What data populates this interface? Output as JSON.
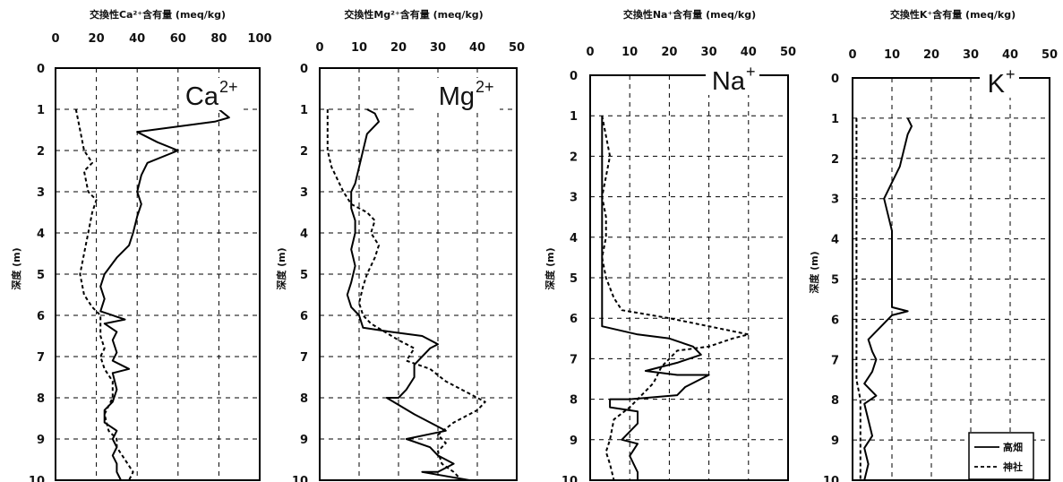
{
  "legend": {
    "entries": [
      {
        "name": "高畑",
        "style": "solid"
      },
      {
        "name": "神社",
        "style": "dashed"
      }
    ],
    "placement": "bottom-right of last panel"
  },
  "chart_data": [
    {
      "type": "line",
      "title": "交換性Ca²⁺含有量 (meq/kg)",
      "ion_label": "Ca",
      "ion_charge": "2+",
      "ylabel": "深度 (m)",
      "xlim": [
        0,
        100
      ],
      "xticks": [
        0,
        20,
        40,
        60,
        80,
        100
      ],
      "ylim": [
        0,
        10
      ],
      "yticks": [
        0,
        1,
        2,
        3,
        4,
        5,
        6,
        7,
        8,
        9,
        10
      ],
      "grid": true,
      "series": [
        {
          "name": "高畑",
          "points": [
            [
              80,
              1.0
            ],
            [
              85,
              1.2
            ],
            [
              78,
              1.3
            ],
            [
              40,
              1.55
            ],
            [
              50,
              1.8
            ],
            [
              60,
              2.0
            ],
            [
              45,
              2.3
            ],
            [
              42,
              2.6
            ],
            [
              40,
              3.0
            ],
            [
              42,
              3.3
            ],
            [
              40,
              3.6
            ],
            [
              38,
              4.0
            ],
            [
              36,
              4.3
            ],
            [
              30,
              4.6
            ],
            [
              24,
              5.0
            ],
            [
              22,
              5.3
            ],
            [
              24,
              5.6
            ],
            [
              22,
              5.9
            ],
            [
              34,
              6.1
            ],
            [
              24,
              6.2
            ],
            [
              30,
              6.4
            ],
            [
              28,
              6.6
            ],
            [
              30,
              6.9
            ],
            [
              28,
              7.1
            ],
            [
              36,
              7.3
            ],
            [
              28,
              7.4
            ],
            [
              30,
              7.8
            ],
            [
              28,
              8.1
            ],
            [
              24,
              8.3
            ],
            [
              24,
              8.6
            ],
            [
              30,
              8.8
            ],
            [
              28,
              9.0
            ],
            [
              30,
              9.2
            ],
            [
              28,
              9.4
            ],
            [
              30,
              9.6
            ],
            [
              30,
              9.8
            ],
            [
              32,
              10.0
            ]
          ]
        },
        {
          "name": "神社",
          "points": [
            [
              10,
              1.0
            ],
            [
              12,
              1.5
            ],
            [
              14,
              2.0
            ],
            [
              18,
              2.3
            ],
            [
              14,
              2.5
            ],
            [
              16,
              3.0
            ],
            [
              20,
              3.2
            ],
            [
              18,
              3.5
            ],
            [
              16,
              4.0
            ],
            [
              14,
              4.5
            ],
            [
              12,
              5.0
            ],
            [
              14,
              5.5
            ],
            [
              18,
              5.8
            ],
            [
              22,
              6.0
            ],
            [
              22,
              6.5
            ],
            [
              24,
              6.8
            ],
            [
              22,
              7.0
            ],
            [
              24,
              7.3
            ],
            [
              28,
              7.6
            ],
            [
              28,
              8.0
            ],
            [
              24,
              8.4
            ],
            [
              26,
              8.8
            ],
            [
              30,
              9.0
            ],
            [
              30,
              9.2
            ],
            [
              34,
              9.5
            ],
            [
              38,
              9.8
            ],
            [
              36,
              10.0
            ]
          ]
        }
      ]
    },
    {
      "type": "line",
      "title": "交換性Mg²⁺含有量 (meq/kg)",
      "ion_label": "Mg",
      "ion_charge": "2+",
      "ylabel": "深度 (m)",
      "xlim": [
        0,
        50
      ],
      "xticks": [
        0,
        10,
        20,
        30,
        40,
        50
      ],
      "ylim": [
        0,
        10
      ],
      "yticks": [
        0,
        1,
        2,
        3,
        4,
        5,
        6,
        7,
        8,
        9,
        10
      ],
      "grid": true,
      "series": [
        {
          "name": "高畑",
          "points": [
            [
              12,
              1.0
            ],
            [
              14,
              1.1
            ],
            [
              15,
              1.3
            ],
            [
              12,
              1.6
            ],
            [
              11,
              2.0
            ],
            [
              10,
              2.4
            ],
            [
              9,
              2.8
            ],
            [
              8,
              3.0
            ],
            [
              8,
              3.4
            ],
            [
              9,
              3.7
            ],
            [
              9,
              4.0
            ],
            [
              8,
              4.4
            ],
            [
              9,
              4.8
            ],
            [
              8,
              5.2
            ],
            [
              7,
              5.5
            ],
            [
              8,
              5.8
            ],
            [
              10,
              6.0
            ],
            [
              11,
              6.3
            ],
            [
              18,
              6.4
            ],
            [
              26,
              6.5
            ],
            [
              30,
              6.7
            ],
            [
              28,
              6.8
            ],
            [
              26,
              7.0
            ],
            [
              24,
              7.2
            ],
            [
              24,
              7.5
            ],
            [
              22,
              7.8
            ],
            [
              20,
              8.0
            ],
            [
              17,
              8.0
            ],
            [
              24,
              8.4
            ],
            [
              32,
              8.8
            ],
            [
              22,
              9.0
            ],
            [
              28,
              9.2
            ],
            [
              30,
              9.4
            ],
            [
              34,
              9.6
            ],
            [
              30,
              9.8
            ],
            [
              26,
              9.8
            ],
            [
              38,
              10.0
            ]
          ]
        },
        {
          "name": "神社",
          "points": [
            [
              2,
              1.0
            ],
            [
              2,
              1.5
            ],
            [
              2,
              2.0
            ],
            [
              3,
              2.4
            ],
            [
              5,
              2.8
            ],
            [
              6,
              3.0
            ],
            [
              8,
              3.3
            ],
            [
              12,
              3.5
            ],
            [
              14,
              3.7
            ],
            [
              13,
              4.0
            ],
            [
              15,
              4.3
            ],
            [
              14,
              4.6
            ],
            [
              12,
              5.0
            ],
            [
              11,
              5.3
            ],
            [
              10,
              5.7
            ],
            [
              11,
              6.0
            ],
            [
              13,
              6.2
            ],
            [
              20,
              6.6
            ],
            [
              24,
              6.8
            ],
            [
              22,
              7.1
            ],
            [
              28,
              7.3
            ],
            [
              32,
              7.6
            ],
            [
              38,
              7.9
            ],
            [
              42,
              8.1
            ],
            [
              40,
              8.3
            ],
            [
              34,
              8.6
            ],
            [
              30,
              8.9
            ],
            [
              32,
              9.1
            ],
            [
              30,
              9.3
            ],
            [
              31,
              9.6
            ],
            [
              34,
              9.8
            ],
            [
              36,
              10.0
            ]
          ]
        }
      ]
    },
    {
      "type": "line",
      "title": "交換性Na⁺含有量 (meq/kg)",
      "ion_label": "Na",
      "ion_charge": "+",
      "ylabel": "深度 (m)",
      "xlim": [
        0,
        50
      ],
      "xticks": [
        0,
        10,
        20,
        30,
        40,
        50
      ],
      "ylim": [
        0,
        10
      ],
      "yticks": [
        0,
        1,
        2,
        3,
        4,
        5,
        6,
        7,
        8,
        9,
        10
      ],
      "grid": true,
      "series": [
        {
          "name": "高畑",
          "points": [
            [
              3,
              1.0
            ],
            [
              3,
              2.0
            ],
            [
              3,
              3.0
            ],
            [
              3,
              4.0
            ],
            [
              3,
              5.0
            ],
            [
              3,
              5.8
            ],
            [
              3,
              6.2
            ],
            [
              12,
              6.4
            ],
            [
              20,
              6.5
            ],
            [
              26,
              6.7
            ],
            [
              28,
              6.9
            ],
            [
              22,
              7.1
            ],
            [
              14,
              7.3
            ],
            [
              22,
              7.4
            ],
            [
              30,
              7.4
            ],
            [
              24,
              7.7
            ],
            [
              22,
              7.9
            ],
            [
              10,
              8.0
            ],
            [
              5,
              8.0
            ],
            [
              5,
              8.2
            ],
            [
              12,
              8.3
            ],
            [
              12,
              8.6
            ],
            [
              8,
              9.0
            ],
            [
              12,
              9.1
            ],
            [
              10,
              9.4
            ],
            [
              12,
              9.8
            ],
            [
              12,
              10.0
            ]
          ]
        },
        {
          "name": "神社",
          "points": [
            [
              3,
              1.0
            ],
            [
              4,
              1.5
            ],
            [
              5,
              2.0
            ],
            [
              4,
              2.5
            ],
            [
              3,
              3.0
            ],
            [
              4,
              3.5
            ],
            [
              4,
              4.0
            ],
            [
              3,
              4.5
            ],
            [
              4,
              5.0
            ],
            [
              6,
              5.5
            ],
            [
              8,
              5.8
            ],
            [
              20,
              6.0
            ],
            [
              30,
              6.2
            ],
            [
              40,
              6.4
            ],
            [
              36,
              6.5
            ],
            [
              30,
              6.7
            ],
            [
              22,
              6.8
            ],
            [
              20,
              7.0
            ],
            [
              18,
              7.2
            ],
            [
              16,
              7.6
            ],
            [
              12,
              8.0
            ],
            [
              10,
              8.2
            ],
            [
              6,
              8.5
            ],
            [
              5,
              9.0
            ],
            [
              4,
              9.3
            ],
            [
              5,
              9.6
            ],
            [
              6,
              10.0
            ]
          ]
        }
      ]
    },
    {
      "type": "line",
      "title": "交換性K⁺含有量 (meq/kg)",
      "ion_label": "K",
      "ion_charge": "+",
      "ylabel": "深度 (m)",
      "xlim": [
        0,
        50
      ],
      "xticks": [
        0,
        10,
        20,
        30,
        40,
        50
      ],
      "ylim": [
        0,
        10
      ],
      "yticks": [
        0,
        1,
        2,
        3,
        4,
        5,
        6,
        7,
        8,
        9,
        10
      ],
      "grid": true,
      "series": [
        {
          "name": "高畑",
          "points": [
            [
              14,
              1.0
            ],
            [
              15,
              1.2
            ],
            [
              14,
              1.4
            ],
            [
              13,
              1.8
            ],
            [
              12,
              2.2
            ],
            [
              10,
              2.6
            ],
            [
              9,
              2.8
            ],
            [
              8,
              3.0
            ],
            [
              9,
              3.4
            ],
            [
              10,
              3.8
            ],
            [
              10,
              4.2
            ],
            [
              10,
              4.6
            ],
            [
              10,
              5.0
            ],
            [
              10,
              5.4
            ],
            [
              10,
              5.7
            ],
            [
              14,
              5.8
            ],
            [
              10,
              5.9
            ],
            [
              8,
              6.1
            ],
            [
              6,
              6.3
            ],
            [
              4,
              6.5
            ],
            [
              5,
              6.8
            ],
            [
              6,
              7.0
            ],
            [
              5,
              7.3
            ],
            [
              3,
              7.6
            ],
            [
              6,
              7.9
            ],
            [
              3,
              8.1
            ],
            [
              4,
              8.5
            ],
            [
              5,
              8.9
            ],
            [
              3,
              9.2
            ],
            [
              4,
              9.6
            ],
            [
              3,
              10.0
            ]
          ]
        },
        {
          "name": "神社",
          "points": [
            [
              1,
              1.0
            ],
            [
              1,
              2.0
            ],
            [
              1,
              3.0
            ],
            [
              1,
              4.0
            ],
            [
              1,
              5.0
            ],
            [
              1,
              6.0
            ],
            [
              1,
              6.5
            ],
            [
              1,
              7.0
            ],
            [
              1,
              7.5
            ],
            [
              2,
              8.0
            ],
            [
              2,
              8.5
            ],
            [
              2,
              9.0
            ],
            [
              2,
              9.5
            ],
            [
              2,
              10.0
            ]
          ]
        }
      ]
    }
  ]
}
